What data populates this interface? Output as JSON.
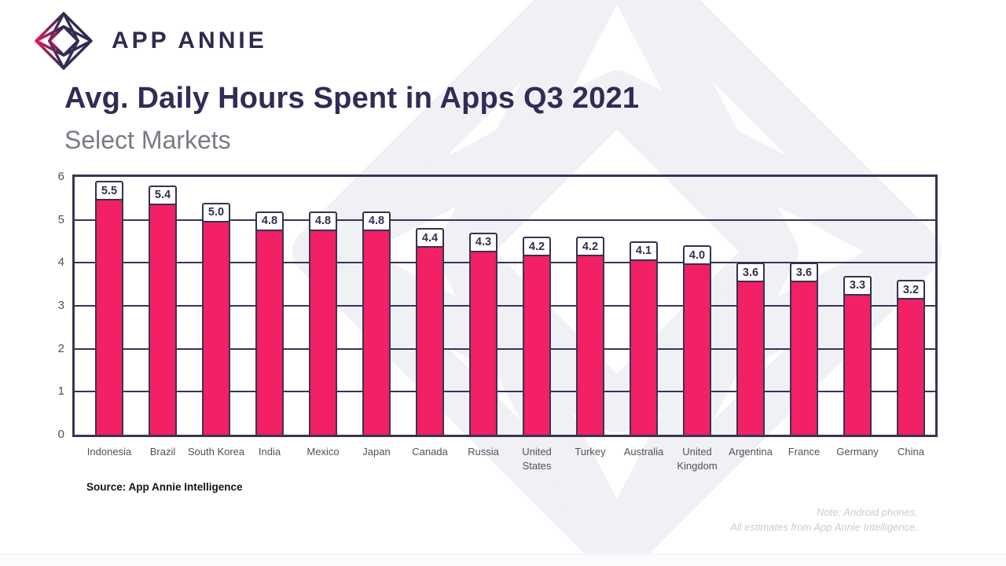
{
  "brand": {
    "name": "APP ANNIE"
  },
  "header": {
    "title": "Avg. Daily Hours Spent in Apps Q3 2021",
    "subtitle": "Select Markets"
  },
  "chart_data": {
    "type": "bar",
    "title": "Avg. Daily Hours Spent in Apps Q3 2021",
    "subtitle": "Select Markets",
    "categories": [
      "Indonesia",
      "Brazil",
      "South Korea",
      "India",
      "Mexico",
      "Japan",
      "Canada",
      "Russia",
      "United States",
      "Turkey",
      "Australia",
      "United Kingdom",
      "Argentina",
      "France",
      "Germany",
      "China"
    ],
    "values": [
      5.5,
      5.4,
      5.0,
      4.8,
      4.8,
      4.8,
      4.4,
      4.3,
      4.2,
      4.2,
      4.1,
      4.0,
      3.6,
      3.6,
      3.3,
      3.2
    ],
    "value_labels": [
      "5.5",
      "5.4",
      "5.0",
      "4.8",
      "4.8",
      "4.8",
      "4.4",
      "4.3",
      "4.2",
      "4.2",
      "4.1",
      "4.0",
      "3.6",
      "3.6",
      "3.3",
      "3.2"
    ],
    "ylabel": "",
    "xlabel": "",
    "ylim": [
      0,
      6
    ],
    "yticks": [
      0,
      1,
      2,
      3,
      4,
      5,
      6
    ],
    "grid": true,
    "legend": "none",
    "bar_color": "#f22064",
    "line_color": "#3a3457"
  },
  "footer": {
    "source": "Source: App Annie Intelligence",
    "note_line1": "Note: Android phones.",
    "note_line2": "All estimates from App Annie Intelligence."
  },
  "colors": {
    "bar_pink": "#f22064",
    "line_navy": "#3a3457",
    "title_navy": "#332b56",
    "subtitle_gray": "#7b7a85",
    "note_gray": "#c7cbd3",
    "logo_pink": "#e8175d",
    "watermark_gray": "#eff1f5"
  }
}
